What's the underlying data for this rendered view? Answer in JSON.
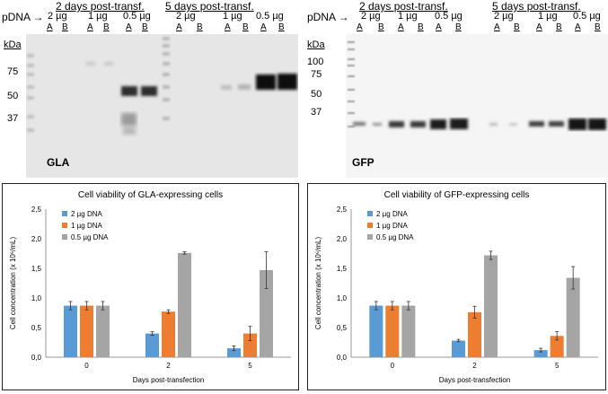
{
  "gla_panel": {
    "pdna_label": "pDNA →",
    "time_headers": [
      "2 days post-transf.",
      "5 days post-transf."
    ],
    "amount_headers": [
      "2 µg",
      "1 µg",
      "0.5 µg",
      "2 µg",
      "1 µg",
      "0.5 µg"
    ],
    "lane_labels": [
      "A",
      "B",
      "A",
      "B",
      "A",
      "B",
      "A",
      "B",
      "A",
      "B",
      "A",
      "B"
    ],
    "kda_label": "kDa",
    "markers": [
      "75",
      "50",
      "37"
    ],
    "protein_label": "GLA"
  },
  "gfp_panel": {
    "pdna_label": "pDNA →",
    "time_headers": [
      "2 days post-transf.",
      "5 days post-transf."
    ],
    "amount_headers": [
      "2 µg",
      "1 µg",
      "0.5 µg",
      "2 µg",
      "1 µg",
      "0.5 µg"
    ],
    "lane_labels": [
      "A",
      "B",
      "A",
      "B",
      "A",
      "B",
      "A",
      "B",
      "A",
      "B",
      "A",
      "B"
    ],
    "kda_label": "kDa",
    "markers": [
      "100",
      "75",
      "50",
      "37"
    ],
    "protein_label": "GFP"
  },
  "colors": {
    "2ug": "#5b9bd5",
    "1ug": "#ed7d31",
    "05ug": "#a5a5a5"
  },
  "chart_data": [
    {
      "type": "bar",
      "title": "Cell viability of GLA-expressing cells",
      "xlabel": "Days post-transfection",
      "ylabel": "Cell concentration (x 10⁶/mL)",
      "categories": [
        "0",
        "2",
        "5"
      ],
      "ylim": [
        0,
        2.5
      ],
      "yticks": [
        "0,0",
        "0,5",
        "1,0",
        "1,5",
        "2,0",
        "2,5"
      ],
      "legend_position": "top-left",
      "series": [
        {
          "name": "2 µg DNA",
          "values": [
            0.87,
            0.4,
            0.15
          ],
          "errors": [
            0.07,
            0.03,
            0.04
          ]
        },
        {
          "name": "1 µg DNA",
          "values": [
            0.87,
            0.77,
            0.4
          ],
          "errors": [
            0.07,
            0.03,
            0.12
          ]
        },
        {
          "name": "0.5 µg DNA",
          "values": [
            0.87,
            1.76,
            1.47
          ],
          "errors": [
            0.07,
            0.02,
            0.31
          ]
        }
      ]
    },
    {
      "type": "bar",
      "title": "Cell viability of GFP-expressing cells",
      "xlabel": "Days post-transfection",
      "ylabel": "Cell concentration (x 10⁶/mL)",
      "categories": [
        "0",
        "2",
        "5"
      ],
      "ylim": [
        0,
        2.5
      ],
      "yticks": [
        "0,0",
        "0,5",
        "1,0",
        "1,5",
        "2,0",
        "2,5"
      ],
      "legend_position": "top-left",
      "series": [
        {
          "name": "2 µg DNA",
          "values": [
            0.87,
            0.28,
            0.12
          ],
          "errors": [
            0.07,
            0.02,
            0.03
          ]
        },
        {
          "name": "1 µg DNA",
          "values": [
            0.87,
            0.76,
            0.36
          ],
          "errors": [
            0.07,
            0.1,
            0.07
          ]
        },
        {
          "name": "0.5 µg DNA",
          "values": [
            0.87,
            1.72,
            1.34
          ],
          "errors": [
            0.07,
            0.07,
            0.19
          ]
        }
      ]
    }
  ]
}
